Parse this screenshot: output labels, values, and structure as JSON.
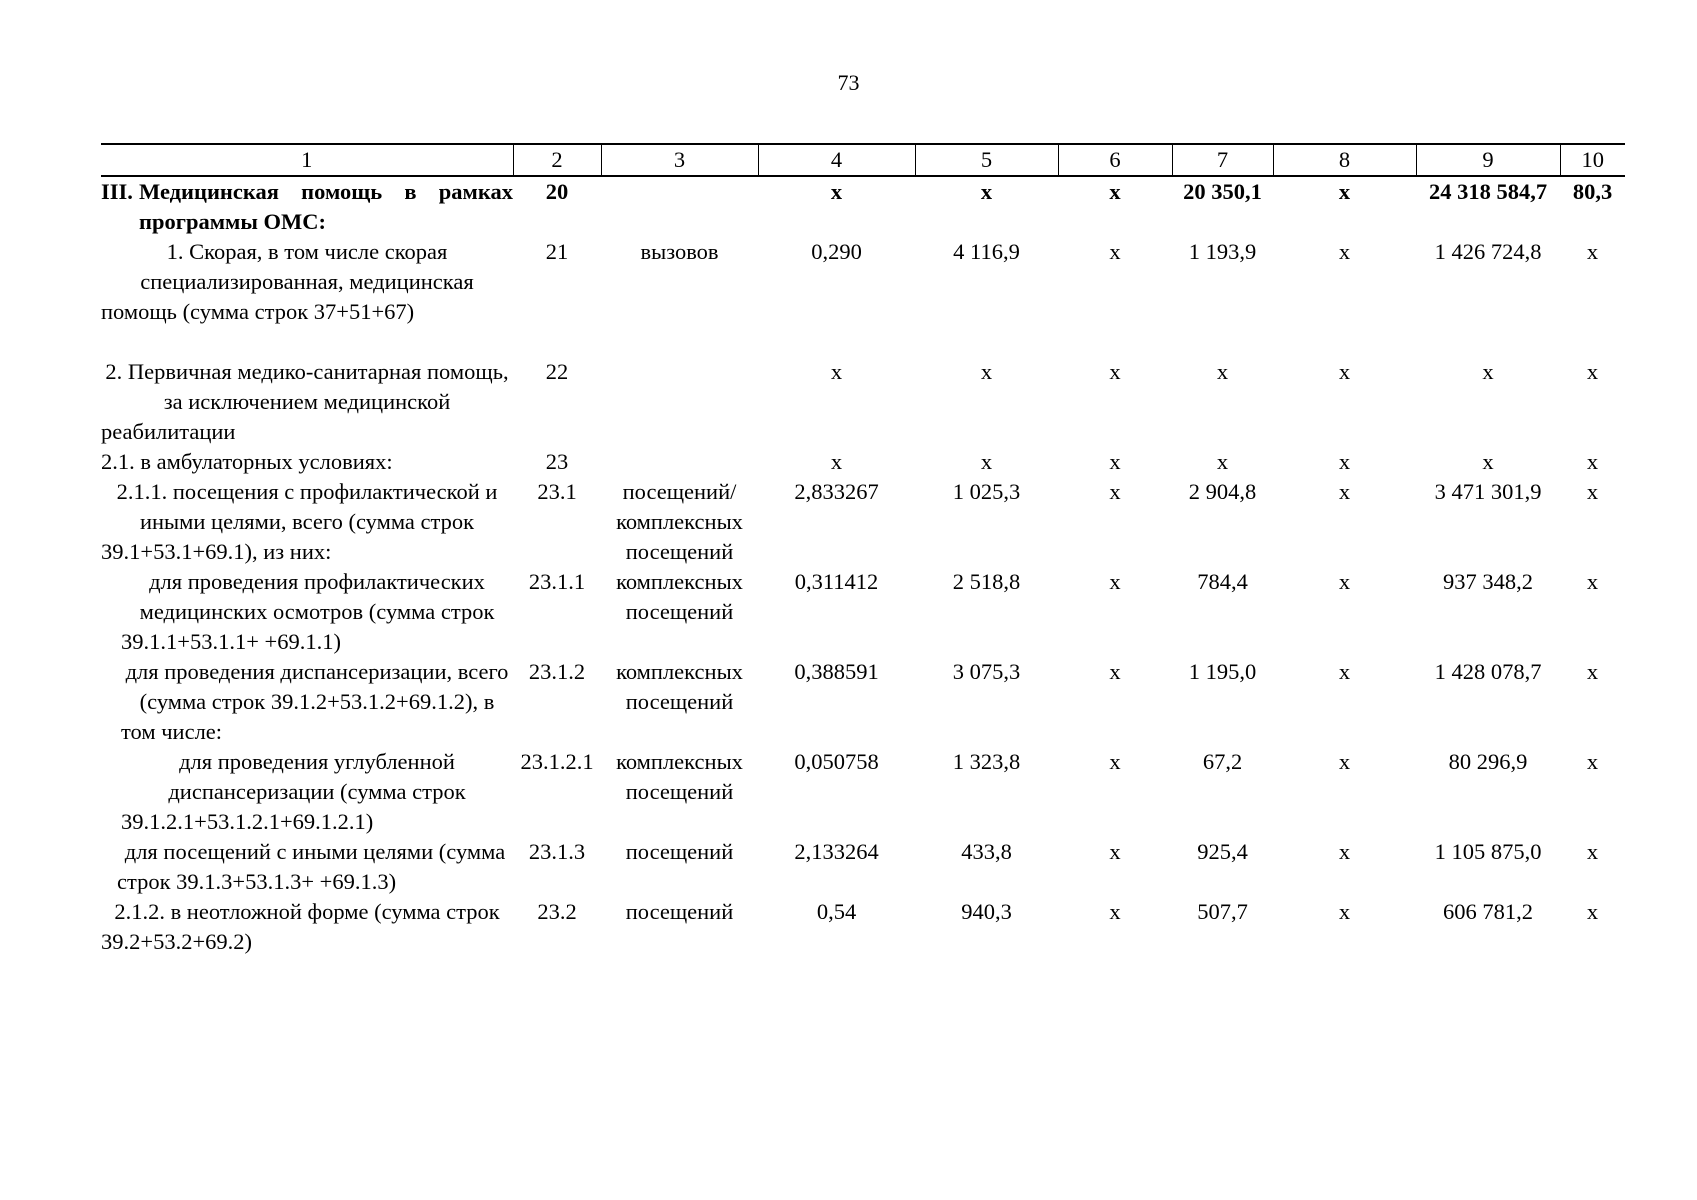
{
  "page_number": "73",
  "header": [
    "1",
    "2",
    "3",
    "4",
    "5",
    "6",
    "7",
    "8",
    "9",
    "10"
  ],
  "rows": [
    {
      "c1_num": "III.",
      "c1": "Медицинская помощь в рамках программы ОМС:",
      "c2": "20",
      "c3": "",
      "c4": "х",
      "c5": "х",
      "c6": "х",
      "c7": "20 350,1",
      "c8": "х",
      "c9": "24 318 584,7",
      "c10": "80,3"
    },
    {
      "c1": "1. Скорая, в том числе скорая специализированная, медицинская помощь (сумма строк 37+51+67)",
      "c2": "21",
      "c3": "вызовов",
      "c4": "0,290",
      "c5": "4 116,9",
      "c6": "х",
      "c7": "1 193,9",
      "c8": "х",
      "c9": "1 426 724,8",
      "c10": "х"
    },
    {
      "c1": "2. Первичная медико-санитарная помощь, за исключением медицинской реабилитации",
      "c2": "22",
      "c3": "",
      "c4": "х",
      "c5": "х",
      "c6": "х",
      "c7": "х",
      "c8": "х",
      "c9": "х",
      "c10": "х"
    },
    {
      "c1": "2.1. в амбулаторных условиях:",
      "c2": "23",
      "c3": "",
      "c4": "х",
      "c5": "х",
      "c6": "х",
      "c7": "х",
      "c8": "х",
      "c9": "х",
      "c10": "х"
    },
    {
      "c1": "2.1.1. посещения с профилактической и иными целями, всего (сумма строк 39.1+53.1+69.1), из них:",
      "c2": "23.1",
      "c3": "посещений/ комплексных посещений",
      "c4": "2,833267",
      "c5": "1 025,3",
      "c6": "х",
      "c7": "2 904,8",
      "c8": "х",
      "c9": "3 471 301,9",
      "c10": "х"
    },
    {
      "c1": "для проведения профилактических медицинских осмотров (сумма строк 39.1.1+53.1.1+ +69.1.1)",
      "c2": "23.1.1",
      "c3": "комплексных посещений",
      "c4": "0,311412",
      "c5": "2 518,8",
      "c6": "х",
      "c7": "784,4",
      "c8": "х",
      "c9": "937 348,2",
      "c10": "х"
    },
    {
      "c1": "для проведения диспансеризации, всего (сумма строк 39.1.2+53.1.2+69.1.2), в том числе:",
      "c2": "23.1.2",
      "c3": "комплексных посещений",
      "c4": "0,388591",
      "c5": "3 075,3",
      "c6": "х",
      "c7": "1 195,0",
      "c8": "х",
      "c9": "1 428 078,7",
      "c10": "х"
    },
    {
      "c1": "для проведения углубленной диспансеризации (сумма строк 39.1.2.1+53.1.2.1+69.1.2.1)",
      "c2": "23.1.2.1",
      "c3": "комплексных посещений",
      "c4": "0,050758",
      "c5": "1 323,8",
      "c6": "х",
      "c7": "67,2",
      "c8": "х",
      "c9": "80 296,9",
      "c10": "х"
    },
    {
      "c1": "для посещений с иными целями (сумма строк 39.1.3+53.1.3+ +69.1.3)",
      "c2": "23.1.3",
      "c3": "посещений",
      "c4": "2,133264",
      "c5": "433,8",
      "c6": "х",
      "c7": "925,4",
      "c8": "х",
      "c9": "1 105 875,0",
      "c10": "х"
    },
    {
      "c1": "2.1.2. в неотложной форме (сумма строк 39.2+53.2+69.2)",
      "c2": "23.2",
      "c3": "посещений",
      "c4": "0,54",
      "c5": "940,3",
      "c6": "х",
      "c7": "507,7",
      "c8": "х",
      "c9": "606 781,2",
      "c10": "х"
    }
  ]
}
